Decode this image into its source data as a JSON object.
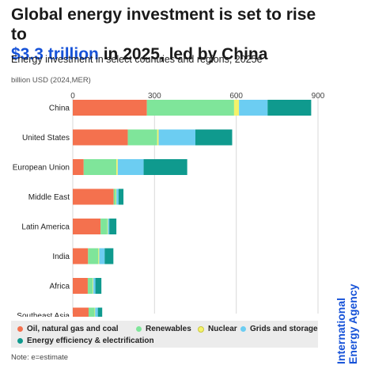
{
  "header": {
    "title_part1": "Global energy investment is set to rise to",
    "title_highlight": "$3.3 trillion",
    "title_part2": " in 2025, led by China",
    "subtitle": "Energy investment in select countries and regions, 2025e",
    "unit_label": "billion USD (2024,MER)"
  },
  "colors": {
    "oil_gas_coal": "#f4714e",
    "renewables": "#7fe59a",
    "nuclear": "#f4f26a",
    "grids_storage": "#6ccdf2",
    "efficiency": "#0f9a8e",
    "accent": "#1652d8"
  },
  "legend": [
    {
      "label": "Oil, natural gas and coal",
      "color": "#f4714e",
      "icon": "legend-dot-icon"
    },
    {
      "label": "Renewables",
      "color": "#7fe59a",
      "icon": "legend-dot-icon"
    },
    {
      "label": "Nuclear",
      "color": "#f4f26a",
      "icon": "legend-dot-icon"
    },
    {
      "label": "Grids and storage",
      "color": "#6ccdf2",
      "icon": "legend-dot-icon"
    },
    {
      "label": "Energy efficiency & electrification",
      "color": "#0f9a8e",
      "icon": "legend-dot-icon"
    }
  ],
  "footnote": "Note: e=estimate",
  "logo": {
    "line1": "International",
    "line2": "Energy Agency"
  },
  "chart_data": {
    "type": "bar",
    "orientation": "horizontal",
    "stacked": true,
    "categories": [
      "China",
      "United States",
      "European Union",
      "Middle East",
      "Latin America",
      "India",
      "Africa",
      "Southeast Asia"
    ],
    "series": [
      {
        "name": "Oil, natural gas and coal",
        "color": "#f4714e",
        "values": [
          272,
          202,
          40,
          150,
          102,
          56,
          55,
          58
        ]
      },
      {
        "name": "Renewables",
        "color": "#7fe59a",
        "values": [
          320,
          108,
          120,
          8,
          25,
          38,
          18,
          22
        ]
      },
      {
        "name": "Nuclear",
        "color": "#f4f26a",
        "values": [
          18,
          5,
          5,
          2,
          2,
          3,
          2,
          2
        ]
      },
      {
        "name": "Grids and storage",
        "color": "#6ccdf2",
        "values": [
          105,
          135,
          95,
          8,
          5,
          20,
          8,
          10
        ]
      },
      {
        "name": "Energy efficiency & electrification",
        "color": "#0f9a8e",
        "values": [
          160,
          135,
          160,
          18,
          26,
          32,
          22,
          16
        ]
      }
    ],
    "xticks": [
      0,
      300,
      600,
      900
    ],
    "xlim": [
      0,
      900
    ],
    "ylabel": "billion USD (2024,MER)",
    "grid": true,
    "legend_position": "bottom"
  }
}
